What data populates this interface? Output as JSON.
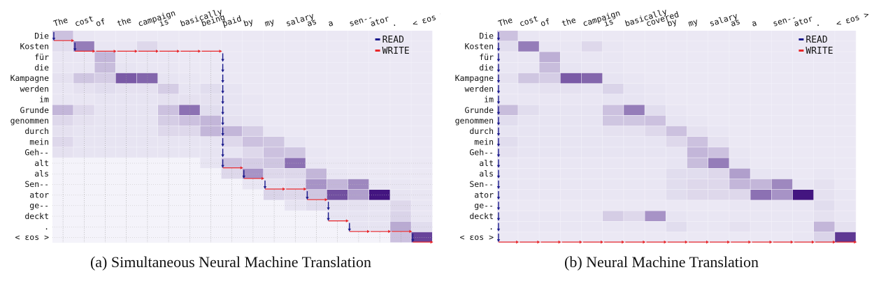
{
  "target_tokens": [
    "The",
    "cost",
    "of",
    "the",
    "campaign",
    "is",
    "basically",
    "being",
    "paid",
    "by",
    "my",
    "salary",
    "as",
    "a",
    "sen--",
    "ator",
    ".",
    "<eos>"
  ],
  "source_tokens": [
    "Die",
    "Kosten",
    "für",
    "die",
    "Kampagne",
    "werden",
    "im",
    "Grunde",
    "genommen",
    "durch",
    "mein",
    "Geh--",
    "alt",
    "als",
    "Sen--",
    "ator",
    "ge--",
    "deckt",
    ".",
    "<eos>"
  ],
  "legend": {
    "read": "READ",
    "write": "WRITE",
    "read_color": "#1a1a8c",
    "write_color": "#e8262a"
  },
  "cell_color": "#3a0a7a",
  "panels": [
    {
      "caption": "(a)  Simultaneous Neural Machine Translation",
      "target_tokens": [
        "The",
        "cost",
        "of",
        "the",
        "campaign",
        "is",
        "basically",
        "being",
        "paid",
        "by",
        "my",
        "salary",
        "as",
        "a",
        "sen--",
        "ator",
        ".",
        "<eos>"
      ],
      "attention": [
        [
          0.2,
          0.04,
          0.03,
          0.03,
          0.03,
          0.03,
          0.03,
          0.03,
          0.03,
          0.03,
          0.03,
          0.03,
          0.03,
          0.03,
          0.03,
          0.03,
          0.03,
          0.03
        ],
        [
          0.08,
          0.5,
          0.04,
          0.04,
          0.1,
          0.04,
          0.03,
          0.03,
          0.03,
          0.03,
          0.03,
          0.03,
          0.03,
          0.03,
          0.03,
          0.03,
          0.03,
          0.03
        ],
        [
          0.04,
          0.04,
          0.25,
          0.04,
          0.04,
          0.04,
          0.03,
          0.03,
          0.03,
          0.03,
          0.03,
          0.03,
          0.03,
          0.03,
          0.03,
          0.03,
          0.03,
          0.03
        ],
        [
          0.04,
          0.04,
          0.22,
          0.05,
          0.04,
          0.04,
          0.03,
          0.03,
          0.03,
          0.03,
          0.03,
          0.03,
          0.03,
          0.03,
          0.03,
          0.03,
          0.03,
          0.03
        ],
        [
          0.06,
          0.18,
          0.15,
          0.65,
          0.6,
          0.05,
          0.04,
          0.03,
          0.03,
          0.03,
          0.03,
          0.03,
          0.03,
          0.03,
          0.03,
          0.03,
          0.03,
          0.03
        ],
        [
          0.04,
          0.06,
          0.08,
          0.06,
          0.06,
          0.15,
          0.05,
          0.08,
          0.05,
          0.03,
          0.03,
          0.03,
          0.03,
          0.03,
          0.03,
          0.03,
          0.03,
          0.03
        ],
        [
          0.04,
          0.04,
          0.05,
          0.05,
          0.05,
          0.06,
          0.06,
          0.06,
          0.05,
          0.04,
          0.03,
          0.03,
          0.03,
          0.03,
          0.03,
          0.03,
          0.03,
          0.03
        ],
        [
          0.25,
          0.1,
          0.05,
          0.05,
          0.05,
          0.2,
          0.55,
          0.08,
          0.05,
          0.04,
          0.03,
          0.03,
          0.03,
          0.03,
          0.03,
          0.03,
          0.03,
          0.03
        ],
        [
          0.1,
          0.06,
          0.05,
          0.05,
          0.05,
          0.15,
          0.2,
          0.25,
          0.06,
          0.05,
          0.03,
          0.03,
          0.03,
          0.03,
          0.03,
          0.03,
          0.03,
          0.03
        ],
        [
          0.06,
          0.05,
          0.05,
          0.05,
          0.05,
          0.1,
          0.1,
          0.25,
          0.25,
          0.15,
          0.04,
          0.03,
          0.03,
          0.03,
          0.03,
          0.03,
          0.03,
          0.03
        ],
        [
          0.1,
          0.05,
          0.05,
          0.05,
          0.05,
          0.05,
          0.05,
          0.05,
          0.1,
          0.2,
          0.18,
          0.05,
          0.03,
          0.03,
          0.03,
          0.03,
          0.03,
          0.03
        ],
        [
          0.06,
          0.05,
          0.05,
          0.05,
          0.05,
          0.05,
          0.05,
          0.05,
          0.05,
          0.1,
          0.2,
          0.18,
          0.04,
          0.03,
          0.03,
          0.03,
          0.03,
          0.03
        ],
        [
          0,
          0,
          0,
          0,
          0,
          0,
          0,
          0.05,
          0.2,
          0.15,
          0.18,
          0.55,
          0.04,
          0.03,
          0.03,
          0.03,
          0.03,
          0.03
        ],
        [
          0,
          0,
          0,
          0,
          0,
          0,
          0,
          0,
          0.1,
          0.4,
          0.1,
          0.1,
          0.25,
          0.04,
          0.03,
          0.03,
          0.03,
          0.03
        ],
        [
          0,
          0,
          0,
          0,
          0,
          0,
          0,
          0,
          0,
          0.04,
          0.06,
          0.08,
          0.4,
          0.25,
          0.45,
          0.04,
          0.04,
          0.03
        ],
        [
          0,
          0,
          0,
          0,
          0,
          0,
          0,
          0,
          0,
          0,
          0.12,
          0.1,
          0.18,
          0.7,
          0.35,
          0.95,
          0.05,
          0.04
        ],
        [
          0,
          0,
          0,
          0,
          0,
          0,
          0,
          0,
          0,
          0,
          0,
          0.05,
          0.08,
          0.06,
          0.06,
          0.05,
          0.1,
          0.04
        ],
        [
          0,
          0,
          0,
          0,
          0,
          0,
          0,
          0,
          0,
          0,
          0,
          0,
          0,
          0.05,
          0.05,
          0.05,
          0.12,
          0.04
        ],
        [
          0,
          0,
          0,
          0,
          0,
          0,
          0,
          0,
          0,
          0,
          0,
          0,
          0,
          0,
          0.05,
          0.05,
          0.3,
          0.08
        ],
        [
          0,
          0,
          0,
          0,
          0,
          0,
          0,
          0,
          0,
          0,
          0,
          0,
          0,
          0,
          0,
          0,
          0.2,
          0.75
        ]
      ],
      "reads_before": [
        1,
        2,
        2,
        2,
        2,
        2,
        2,
        2,
        13,
        14,
        15,
        15,
        16,
        18,
        19,
        19,
        19,
        20
      ]
    },
    {
      "caption": "(b)  Neural Machine Translation",
      "target_tokens": [
        "The",
        "cost",
        "of",
        "the",
        "campaign",
        "is",
        "basically",
        "covered",
        "by",
        "my",
        "salary",
        "as",
        "a",
        "sen--",
        "ator",
        ".",
        "<eos>"
      ],
      "attention": [
        [
          0.2,
          0.04,
          0.03,
          0.03,
          0.03,
          0.03,
          0.03,
          0.03,
          0.03,
          0.03,
          0.03,
          0.03,
          0.03,
          0.03,
          0.03,
          0.03,
          0.03
        ],
        [
          0.08,
          0.5,
          0.04,
          0.04,
          0.1,
          0.04,
          0.03,
          0.03,
          0.03,
          0.03,
          0.03,
          0.03,
          0.03,
          0.03,
          0.03,
          0.03,
          0.03
        ],
        [
          0.04,
          0.04,
          0.28,
          0.04,
          0.04,
          0.04,
          0.03,
          0.03,
          0.03,
          0.03,
          0.03,
          0.03,
          0.03,
          0.03,
          0.03,
          0.03,
          0.03
        ],
        [
          0.04,
          0.04,
          0.22,
          0.05,
          0.04,
          0.04,
          0.03,
          0.03,
          0.03,
          0.03,
          0.03,
          0.03,
          0.03,
          0.03,
          0.03,
          0.03,
          0.03
        ],
        [
          0.06,
          0.18,
          0.15,
          0.65,
          0.6,
          0.05,
          0.04,
          0.03,
          0.03,
          0.03,
          0.03,
          0.03,
          0.03,
          0.03,
          0.03,
          0.03,
          0.03
        ],
        [
          0.04,
          0.05,
          0.06,
          0.06,
          0.05,
          0.12,
          0.05,
          0.04,
          0.03,
          0.03,
          0.03,
          0.03,
          0.03,
          0.03,
          0.03,
          0.03,
          0.03
        ],
        [
          0.04,
          0.04,
          0.04,
          0.04,
          0.04,
          0.05,
          0.05,
          0.04,
          0.03,
          0.03,
          0.03,
          0.03,
          0.03,
          0.03,
          0.03,
          0.03,
          0.03
        ],
        [
          0.22,
          0.08,
          0.05,
          0.05,
          0.05,
          0.2,
          0.5,
          0.08,
          0.04,
          0.03,
          0.03,
          0.03,
          0.03,
          0.03,
          0.03,
          0.03,
          0.03
        ],
        [
          0.08,
          0.05,
          0.05,
          0.05,
          0.05,
          0.18,
          0.18,
          0.2,
          0.05,
          0.04,
          0.03,
          0.03,
          0.03,
          0.03,
          0.03,
          0.03,
          0.03
        ],
        [
          0.05,
          0.05,
          0.05,
          0.05,
          0.05,
          0.06,
          0.06,
          0.1,
          0.2,
          0.06,
          0.04,
          0.03,
          0.03,
          0.03,
          0.03,
          0.03,
          0.03
        ],
        [
          0.08,
          0.05,
          0.05,
          0.05,
          0.05,
          0.05,
          0.05,
          0.05,
          0.1,
          0.2,
          0.06,
          0.03,
          0.03,
          0.03,
          0.03,
          0.03,
          0.03
        ],
        [
          0.06,
          0.05,
          0.05,
          0.05,
          0.05,
          0.05,
          0.05,
          0.05,
          0.05,
          0.25,
          0.2,
          0.04,
          0.03,
          0.03,
          0.03,
          0.03,
          0.03
        ],
        [
          0.04,
          0.04,
          0.04,
          0.04,
          0.04,
          0.04,
          0.04,
          0.04,
          0.05,
          0.22,
          0.5,
          0.05,
          0.03,
          0.03,
          0.03,
          0.03,
          0.03
        ],
        [
          0.04,
          0.04,
          0.04,
          0.04,
          0.04,
          0.04,
          0.04,
          0.04,
          0.08,
          0.08,
          0.1,
          0.35,
          0.05,
          0.04,
          0.03,
          0.04,
          0.03
        ],
        [
          0.04,
          0.04,
          0.04,
          0.04,
          0.04,
          0.04,
          0.04,
          0.04,
          0.08,
          0.1,
          0.1,
          0.25,
          0.25,
          0.45,
          0.04,
          0.06,
          0.03
        ],
        [
          0.04,
          0.04,
          0.04,
          0.04,
          0.04,
          0.04,
          0.04,
          0.04,
          0.08,
          0.1,
          0.1,
          0.1,
          0.55,
          0.4,
          0.95,
          0.06,
          0.04
        ],
        [
          0.03,
          0.03,
          0.03,
          0.03,
          0.03,
          0.03,
          0.03,
          0.03,
          0.03,
          0.03,
          0.03,
          0.04,
          0.04,
          0.04,
          0.04,
          0.08,
          0.04
        ],
        [
          0.04,
          0.04,
          0.04,
          0.04,
          0.04,
          0.15,
          0.1,
          0.4,
          0.05,
          0.04,
          0.04,
          0.04,
          0.04,
          0.04,
          0.04,
          0.06,
          0.04
        ],
        [
          0.04,
          0.04,
          0.04,
          0.04,
          0.04,
          0.04,
          0.04,
          0.04,
          0.08,
          0.04,
          0.04,
          0.06,
          0.04,
          0.04,
          0.04,
          0.25,
          0.06
        ],
        [
          0.03,
          0.03,
          0.03,
          0.03,
          0.03,
          0.03,
          0.03,
          0.03,
          0.03,
          0.03,
          0.03,
          0.03,
          0.03,
          0.03,
          0.04,
          0.12,
          0.8
        ]
      ],
      "reads_before": [
        20,
        20,
        20,
        20,
        20,
        20,
        20,
        20,
        20,
        20,
        20,
        20,
        20,
        20,
        20,
        20,
        20
      ]
    }
  ]
}
